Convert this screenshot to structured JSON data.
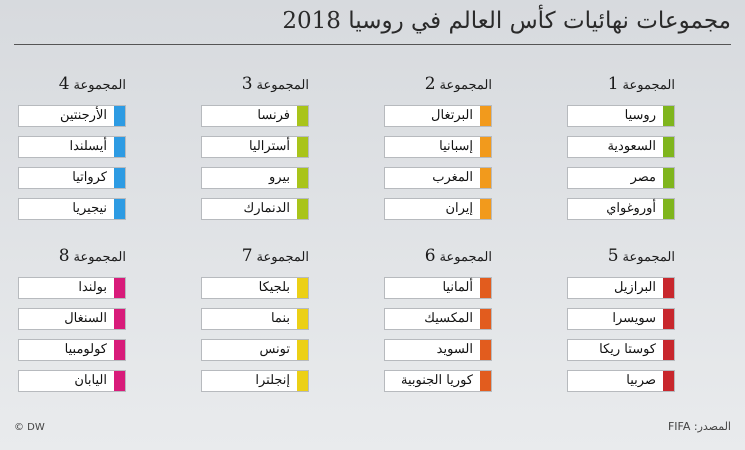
{
  "title": "مجموعات نهائيات كأس العالم في روسيا 2018",
  "group_word": "المجموعة",
  "groups": [
    {
      "num": "1",
      "color": "#7fb51d",
      "teams": [
        "روسيا",
        "السعودية",
        "مصر",
        "أوروغواي"
      ]
    },
    {
      "num": "2",
      "color": "#f29a1c",
      "teams": [
        "البرتغال",
        "إسبانيا",
        "المغرب",
        "إيران"
      ]
    },
    {
      "num": "3",
      "color": "#a9c41a",
      "teams": [
        "فرنسا",
        "أستراليا",
        "بيرو",
        "الدنمارك"
      ]
    },
    {
      "num": "4",
      "color": "#2d9be3",
      "teams": [
        "الأرجنتين",
        "أيسلندا",
        "كرواتيا",
        "نيجيريا"
      ]
    },
    {
      "num": "5",
      "color": "#c8272d",
      "teams": [
        "البرازيل",
        "سويسرا",
        "كوستا ريكا",
        "صربيا"
      ]
    },
    {
      "num": "6",
      "color": "#e25c1e",
      "teams": [
        "ألمانيا",
        "المكسيك",
        "السويد",
        "كوريا الجنوبية"
      ]
    },
    {
      "num": "7",
      "color": "#ecd016",
      "teams": [
        "بلجيكا",
        "بنما",
        "تونس",
        "إنجلترا"
      ]
    },
    {
      "num": "8",
      "color": "#d81b7a",
      "teams": [
        "بولندا",
        "السنغال",
        "كولومبيا",
        "اليابان"
      ]
    }
  ],
  "footer": {
    "credit": "© DW",
    "source": "المصدر: FIFA"
  }
}
